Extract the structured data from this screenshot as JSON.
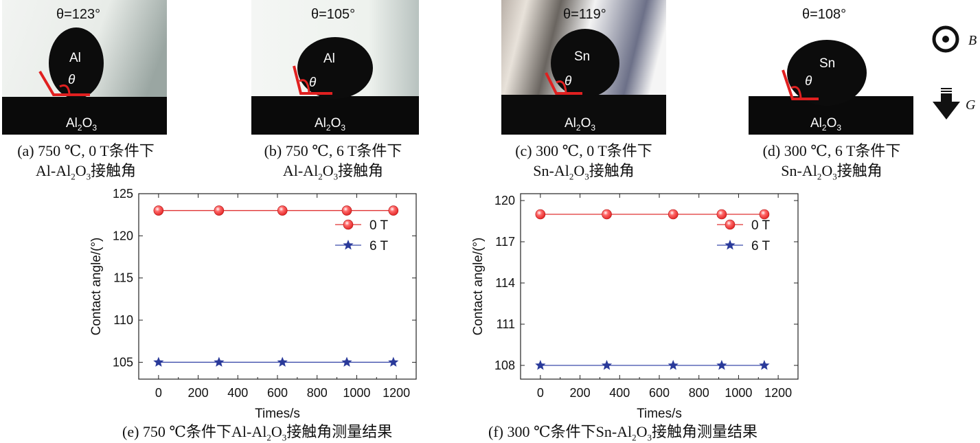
{
  "photos": [
    {
      "angle_label": "θ=123°",
      "drop_label": "Al",
      "theta_label": "θ",
      "substrate_prefix": "Al",
      "substrate_sub1": "2",
      "substrate_mid": "O",
      "substrate_sub2": "3",
      "caption_line1": "(a) 750 ℃, 0 T条件下",
      "caption_line2_prefix": "Al-Al",
      "caption_line2_sub1": "2",
      "caption_line2_mid": "O",
      "caption_line2_sub2": "3",
      "caption_line2_suffix": "接触角"
    },
    {
      "angle_label": "θ=105°",
      "drop_label": "Al",
      "theta_label": "θ",
      "substrate_prefix": "Al",
      "substrate_sub1": "2",
      "substrate_mid": "O",
      "substrate_sub2": "3",
      "caption_line1": "(b) 750 ℃, 6 T条件下",
      "caption_line2_prefix": "Al-Al",
      "caption_line2_sub1": "2",
      "caption_line2_mid": "O",
      "caption_line2_sub2": "3",
      "caption_line2_suffix": "接触角"
    },
    {
      "angle_label": "θ=119°",
      "drop_label": "Sn",
      "theta_label": "θ",
      "substrate_prefix": "Al",
      "substrate_sub1": "2",
      "substrate_mid": "O",
      "substrate_sub2": "3",
      "caption_line1": "(c) 300 ℃, 0 T条件下",
      "caption_line2_prefix": "Sn-Al",
      "caption_line2_sub1": "2",
      "caption_line2_mid": "O",
      "caption_line2_sub2": "3",
      "caption_line2_suffix": "接触角"
    },
    {
      "angle_label": "θ=108°",
      "drop_label": "Sn",
      "theta_label": "θ",
      "substrate_prefix": "Al",
      "substrate_sub1": "2",
      "substrate_mid": "O",
      "substrate_sub2": "3",
      "caption_line1": "(d) 300 ℃, 6 T条件下",
      "caption_line2_prefix": "Sn-Al",
      "caption_line2_sub1": "2",
      "caption_line2_mid": "O",
      "caption_line2_sub2": "3",
      "caption_line2_suffix": "接触角"
    }
  ],
  "field_labels": {
    "b_label": "B",
    "g_label": "G"
  },
  "colors": {
    "series_0T": "#e02020",
    "series_6T": "#2a3a9a",
    "line_0T": "#e03030",
    "line_6T": "#3a4aaa"
  },
  "chart_data": [
    {
      "type": "line",
      "xlabel": "Times/s",
      "ylabel": "Contact angle/(°)",
      "xlim": [
        -100,
        1300
      ],
      "ylim": [
        103,
        125
      ],
      "xticks": [
        0,
        200,
        400,
        600,
        800,
        1000,
        1200
      ],
      "yticks": [
        105,
        110,
        115,
        120,
        125
      ],
      "legend_position": "upper-right",
      "series": [
        {
          "name": "0 T",
          "marker": "sphere",
          "x": [
            0,
            305,
            625,
            950,
            1185
          ],
          "y": [
            123,
            123,
            123,
            123,
            123
          ]
        },
        {
          "name": "6 T",
          "marker": "star",
          "x": [
            0,
            305,
            625,
            950,
            1185
          ],
          "y": [
            105,
            105,
            105,
            105,
            105
          ]
        }
      ],
      "caption_prefix": "(e) 750 ℃条件下Al-Al",
      "caption_sub1": "2",
      "caption_mid": "O",
      "caption_sub2": "3",
      "caption_suffix": "接触角测量结果"
    },
    {
      "type": "line",
      "xlabel": "Times/s",
      "ylabel": "Contact angle/(°)",
      "xlim": [
        -100,
        1300
      ],
      "ylim": [
        107,
        120.5
      ],
      "xticks": [
        0,
        200,
        400,
        600,
        800,
        1000,
        1200
      ],
      "yticks": [
        108,
        111,
        114,
        117,
        120
      ],
      "legend_position": "upper-right",
      "series": [
        {
          "name": "0 T",
          "marker": "sphere",
          "x": [
            0,
            335,
            670,
            915,
            1130
          ],
          "y": [
            119,
            119,
            119,
            119,
            119
          ]
        },
        {
          "name": "6 T",
          "marker": "star",
          "x": [
            0,
            335,
            670,
            915,
            1130
          ],
          "y": [
            108,
            108,
            108,
            108,
            108
          ]
        }
      ],
      "caption_prefix": "(f) 300 ℃条件下Sn-Al",
      "caption_sub1": "2",
      "caption_mid": "O",
      "caption_sub2": "3",
      "caption_suffix": "接触角测量结果"
    }
  ]
}
